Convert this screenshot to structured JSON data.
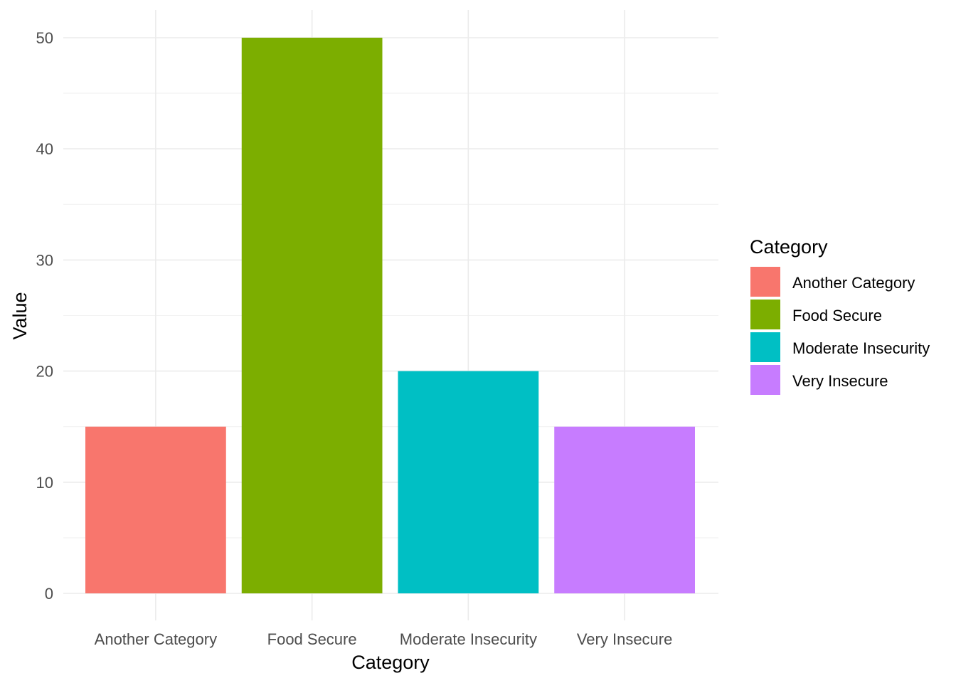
{
  "chart_data": {
    "type": "bar",
    "categories": [
      "Another Category",
      "Food Secure",
      "Moderate Insecurity",
      "Very Insecure"
    ],
    "values": [
      15,
      50,
      20,
      15
    ],
    "colors": [
      "#F8766D",
      "#7CAE00",
      "#00BFC4",
      "#C77CFF"
    ],
    "xlabel": "Category",
    "ylabel": "Value",
    "ylim": [
      0,
      52.5
    ],
    "yticks": [
      0,
      10,
      20,
      30,
      40,
      50
    ],
    "ytick_labels": [
      "0",
      "10",
      "20",
      "30",
      "40",
      "50"
    ],
    "grid": true,
    "legend": {
      "title": "Category",
      "position": "right",
      "entries": [
        "Another Category",
        "Food Secure",
        "Moderate Insecurity",
        "Very Insecure"
      ]
    }
  }
}
